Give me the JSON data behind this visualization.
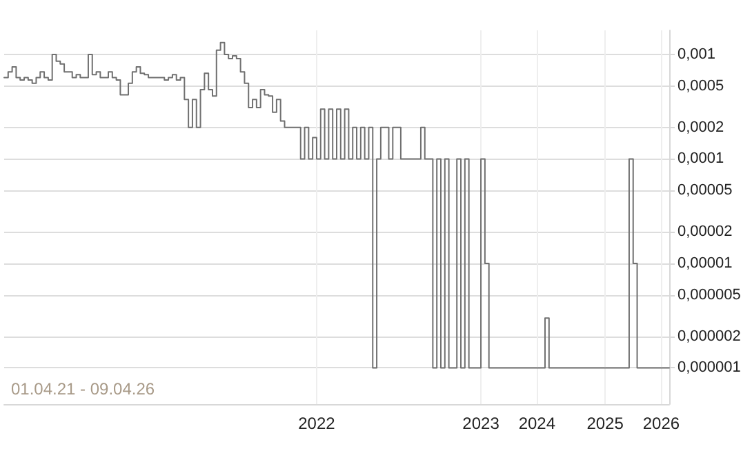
{
  "chart_data": {
    "type": "step",
    "color": "#707070",
    "log": true,
    "grid": true,
    "marker": "none",
    "line_style": "solid",
    "annotations": [
      "01.04.21 - 09.04.26"
    ],
    "ylim": [
      4.5e-07,
      0.0017
    ],
    "yticks": [
      {
        "value": 0.001,
        "label": "0,001"
      },
      {
        "value": 0.0005,
        "label": "0,0005"
      },
      {
        "value": 0.0002,
        "label": "0,0002"
      },
      {
        "value": 0.0001,
        "label": "0,0001"
      },
      {
        "value": 5e-05,
        "label": "0,00005"
      },
      {
        "value": 2e-05,
        "label": "0,00002"
      },
      {
        "value": 1e-05,
        "label": "0,00001"
      },
      {
        "value": 5e-06,
        "label": "0,000005"
      },
      {
        "value": 2e-06,
        "label": "0,000002"
      },
      {
        "value": 1e-06,
        "label": "0,000001"
      }
    ],
    "categories": [
      null,
      null,
      null,
      null,
      null,
      null,
      null,
      null,
      null,
      null,
      null,
      null,
      null,
      null,
      null,
      null,
      null,
      null,
      null,
      null,
      null,
      null,
      null,
      null,
      null,
      null,
      null,
      null,
      null,
      null,
      null,
      null,
      null,
      null,
      null,
      null,
      null,
      null,
      null,
      null,
      null,
      null,
      null,
      null,
      null,
      null,
      null,
      null,
      null,
      null,
      null,
      null,
      null,
      null,
      null,
      null,
      null,
      null,
      null,
      null,
      null,
      null,
      null,
      null,
      null,
      null,
      null,
      null,
      null,
      null,
      null,
      null,
      null,
      null,
      null,
      null,
      null,
      null,
      "2022",
      null,
      null,
      null,
      null,
      null,
      null,
      null,
      null,
      null,
      null,
      null,
      null,
      null,
      null,
      null,
      null,
      null,
      null,
      null,
      null,
      null,
      null,
      null,
      null,
      null,
      null,
      null,
      null,
      null,
      null,
      null,
      null,
      null,
      null,
      null,
      null,
      null,
      null,
      null,
      null,
      "2023",
      null,
      null,
      null,
      null,
      null,
      null,
      null,
      null,
      null,
      null,
      null,
      null,
      null,
      "2024",
      null,
      null,
      null,
      null,
      null,
      null,
      null,
      null,
      null,
      null,
      null,
      null,
      null,
      null,
      null,
      null,
      "2025",
      null,
      null,
      null,
      null,
      null,
      null,
      null,
      null,
      null,
      null,
      null,
      null,
      null,
      "2026",
      null,
      null
    ],
    "values": [
      0.0006,
      0.00068,
      0.00076,
      0.0006,
      0.00057,
      0.0006,
      0.00057,
      0.00053,
      0.0006,
      0.00068,
      0.0006,
      0.00057,
      0.001,
      0.00086,
      0.00081,
      0.00068,
      0.00068,
      0.0006,
      0.00064,
      0.0006,
      0.0006,
      0.001,
      0.00064,
      0.00068,
      0.0006,
      0.0006,
      0.00068,
      0.0006,
      0.00057,
      0.00041,
      0.00041,
      0.00053,
      0.00068,
      0.00076,
      0.00066,
      0.00064,
      0.0006,
      0.0006,
      0.0006,
      0.0006,
      0.00057,
      0.0006,
      0.00064,
      0.00057,
      0.0006,
      0.00037,
      0.0002,
      0.00037,
      0.0002,
      0.00046,
      0.00066,
      0.00046,
      0.0004,
      0.0011,
      0.0013,
      0.001,
      0.00091,
      0.00097,
      0.00091,
      0.00068,
      0.00053,
      0.00031,
      0.00037,
      0.00031,
      0.00046,
      0.00041,
      0.0004,
      0.00028,
      0.00037,
      0.00023,
      0.0002,
      0.0002,
      0.0002,
      0.0002,
      0.0001,
      0.0002,
      0.0001,
      0.00016,
      0.0001,
      0.0003,
      0.0001,
      0.0003,
      0.0001,
      0.0003,
      0.0001,
      0.0003,
      0.0001,
      0.0002,
      0.0001,
      0.0002,
      0.0001,
      0.0002,
      1e-06,
      0.0001,
      0.0002,
      0.0002,
      0.0001,
      0.0002,
      0.0002,
      0.0001,
      0.0001,
      0.0001,
      0.0001,
      0.0001,
      0.0002,
      0.0001,
      0.0001,
      1e-06,
      0.0001,
      1e-06,
      0.0001,
      1e-06,
      1e-06,
      0.0001,
      1e-06,
      0.0001,
      1e-06,
      1e-06,
      1e-06,
      0.0001,
      1e-05,
      1e-06,
      1e-06,
      1e-06,
      1e-06,
      1e-06,
      1e-06,
      1e-06,
      1e-06,
      1e-06,
      1e-06,
      1e-06,
      1e-06,
      1e-06,
      1e-06,
      3e-06,
      1e-06,
      1e-06,
      1e-06,
      1e-06,
      1e-06,
      1e-06,
      1e-06,
      1e-06,
      1e-06,
      1e-06,
      1e-06,
      1e-06,
      1e-06,
      1e-06,
      1e-06,
      1e-06,
      1e-06,
      1e-06,
      1e-06,
      1e-06,
      0.0001,
      1e-05,
      1e-06,
      1e-06,
      1e-06,
      1e-06,
      1e-06,
      1e-06,
      1e-06,
      1e-06,
      1e-06
    ]
  }
}
